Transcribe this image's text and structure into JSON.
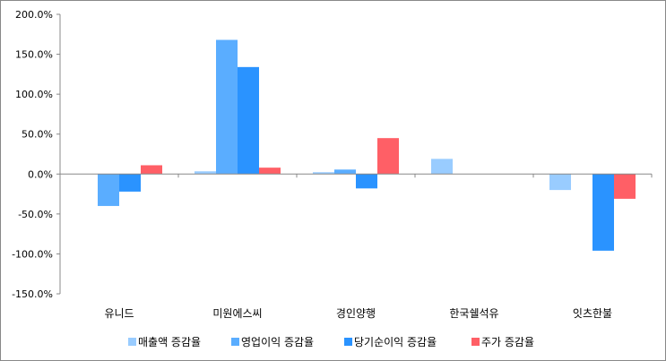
{
  "chart_data": {
    "type": "bar",
    "title": "",
    "xlabel": "",
    "ylabel": "",
    "ylim": [
      -150,
      200
    ],
    "yticks": [
      -150,
      -100,
      -50,
      0,
      50,
      100,
      150,
      200
    ],
    "ytick_labels": [
      "-150.0%",
      "-100.0%",
      "-50.0%",
      "0.0%",
      "50.0%",
      "100.0%",
      "150.0%",
      "200.0%"
    ],
    "categories": [
      "유니드",
      "미원에스씨",
      "경인양행",
      "한국쉘석유",
      "잇츠한불"
    ],
    "series": [
      {
        "name": "매출액 증감율",
        "color": "#99ccff",
        "values": [
          0,
          3.4,
          2.3,
          19,
          -20
        ]
      },
      {
        "name": "영업이익 증감율",
        "color": "#5aadff",
        "values": [
          -40,
          168,
          5.6,
          0,
          0
        ]
      },
      {
        "name": "당기순이익 증감율",
        "color": "#2a93ff",
        "values": [
          -22,
          134,
          -18,
          0,
          -96
        ]
      },
      {
        "name": "주가 증감율",
        "color": "#ff5f66",
        "values": [
          11,
          8,
          45,
          0,
          -31
        ]
      }
    ],
    "legend_position": "bottom",
    "grid": false
  }
}
